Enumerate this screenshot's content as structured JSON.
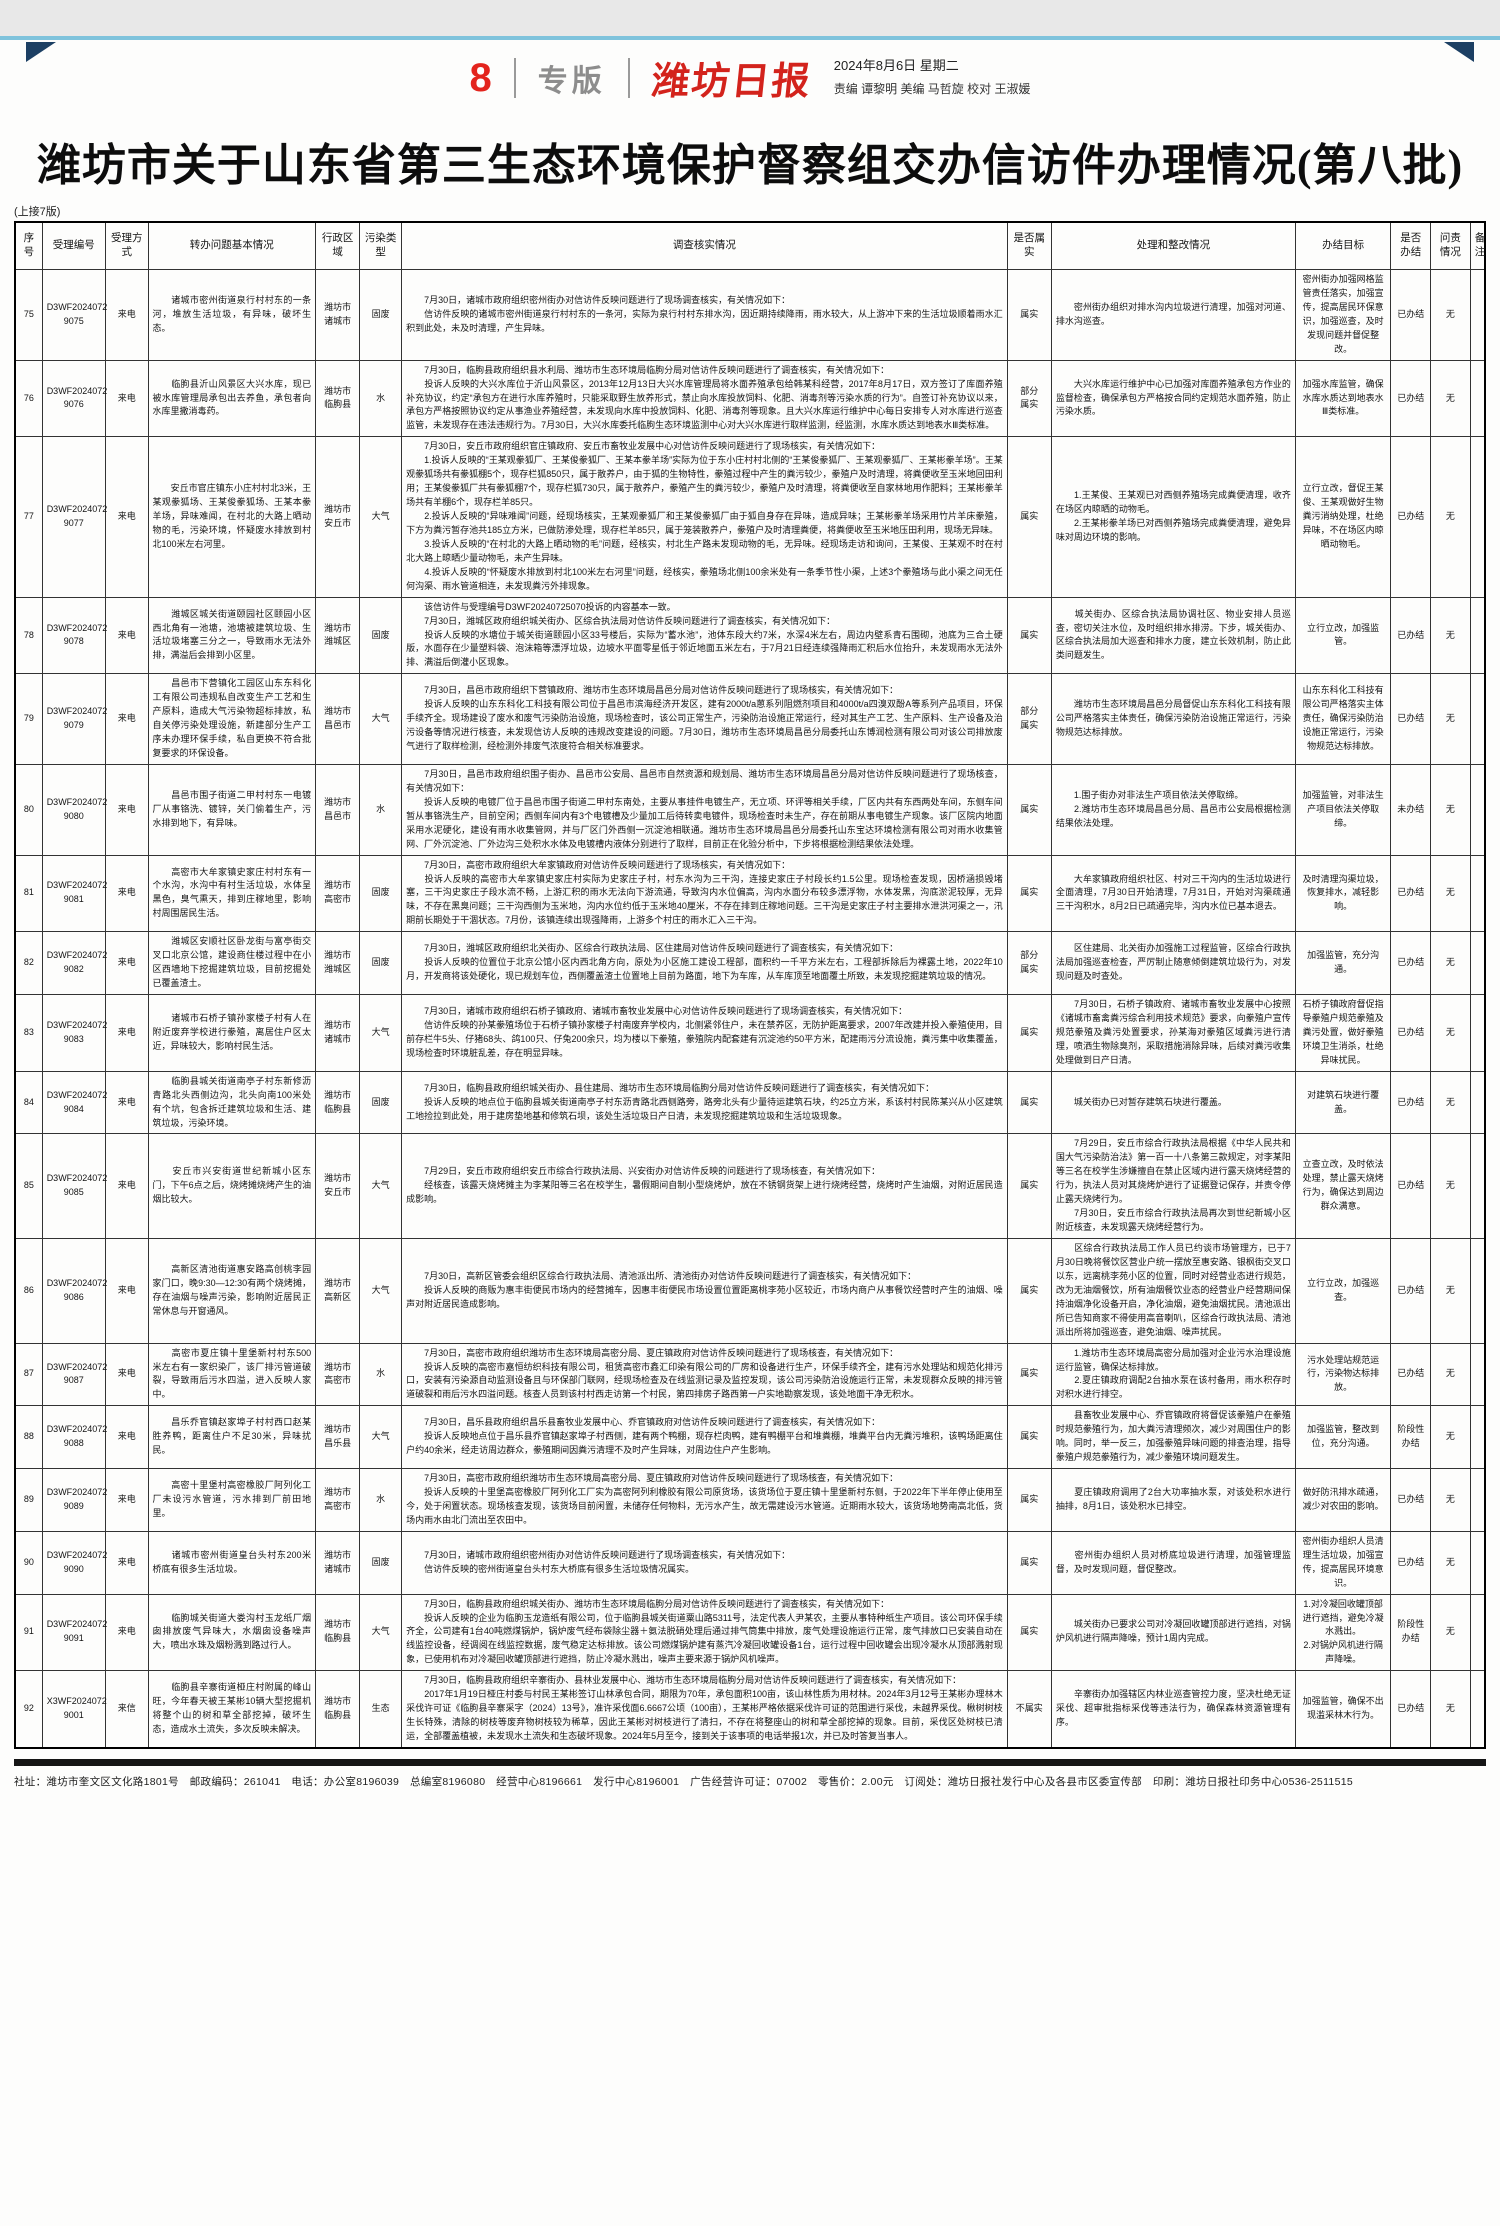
{
  "colors": {
    "brand_red": "#d3231c",
    "rule_blue": "#7fc3dc",
    "corner_navy": "#1c3f63"
  },
  "masthead": {
    "page_number": "8",
    "section": "专版",
    "paper_name": "潍坊日报",
    "date_line": "2024年8月6日        星期二",
    "credits": "责编 谭黎明 美编 马哲旋 校对 王淑媛"
  },
  "headline": "潍坊市关于山东省第三生态环境保护督察组交办信访件办理情况(第八批)",
  "continued_note": "(上接7版)",
  "table": {
    "headers": [
      "序号",
      "受理编号",
      "受理方式",
      "转办问题基本情况",
      "行政区域",
      "污染类型",
      "调查核实情况",
      "是否属实",
      "处理和整改情况",
      "办结目标",
      "是否办结",
      "问责情况",
      "备注"
    ],
    "rows": [
      {
        "no": "75",
        "id": "D3WF2024072\n9075",
        "method": "来电",
        "issue": "　　诸城市密州街道泉行村村东的一条河，堆放生活垃圾，有异味，破坏生态。",
        "region": "潍坊市\n诸城市",
        "type": "固废",
        "investigation": "　　7月30日，诸城市政府组织密州街办对信访件反映问题进行了现场调查核实，有关情况如下：\n　　信访件反映的诸城市密州街道泉行村村东的一条河，实际为泉行村村东排水沟，因近期持续降雨，雨水较大，从上游冲下来的生活垃圾顺着雨水汇积到此处，未及时清理，产生异味。",
        "verified": "属实",
        "handling": "　　密州街办组织对排水沟内垃圾进行清理，加强对河道、排水沟巡查。",
        "goal": "密州街办加强网格监管责任落实，加强宣传，提高居民环保意识，加强巡查，及时发现问题并督促整改。",
        "status": "已办结",
        "accountability": "无",
        "remark": ""
      },
      {
        "no": "76",
        "id": "D3WF2024072\n9076",
        "method": "来电",
        "issue": "　　临朐县沂山风景区大兴水库，现已被水库管理局承包出去养鱼，承包者向水库里撒消毒药。",
        "region": "潍坊市\n临朐县",
        "type": "水",
        "investigation": "　　7月30日，临朐县政府组织县水利局、潍坊市生态环境局临朐分局对信访件反映问题进行了调查核实，有关情况如下：\n　　投诉人反映的大兴水库位于沂山风景区，2013年12月13日大兴水库管理局将水面养殖承包给韩某科经营，2017年8月17日，双方签订了库面养殖补充协议，约定“承包方在进行水库养殖时，只能采取野生放养形式，禁止向水库投放饲料、化肥、消毒剂等污染水质的行为”。自签订补充协议以来，承包方严格按照协议约定从事渔业养殖经营，未发现向水库中投放饲料、化肥、消毒剂等现象。且大兴水库运行维护中心每日安排专人对水库进行巡查监管，未发现存在违法违规行为。7月30日，大兴水库委托临朐生态环境监测中心对大兴水库进行取样监测，经监测，水库水质达到地表水Ⅲ类标准。",
        "verified": "部分\n属实",
        "handling": "　　大兴水库运行维护中心已加强对库面养殖承包方作业的监督检查，确保承包方严格按合同约定规范水面养殖，防止污染水质。",
        "goal": "加强水库监管，确保水库水质达到地表水Ⅲ类标准。",
        "status": "已办结",
        "accountability": "无",
        "remark": ""
      },
      {
        "no": "77",
        "id": "D3WF2024072\n9077",
        "method": "来电",
        "issue": "　　安丘市官庄镇东小庄村村北3米，王某观豢狐场、王某俊豢狐场、王某本豢羊场，异味难闻，在村北的大路上晒动物的毛，污染环境，怀疑废水排放到村北100米左右河里。",
        "region": "潍坊市\n安丘市",
        "type": "大气",
        "investigation": "　　7月30日，安丘市政府组织官庄镇政府、安丘市畜牧业发展中心对信访件反映问题进行了现场核实，有关情况如下：\n　　1.投诉人反映的“王某观豢狐厂、王某俊豢狐厂、王某本豢羊场”实际为位于东小庄村村北侧的“王某俊豢狐厂、王某观豢狐厂、王某彬豢羊场”。王某观豢狐场共有豢狐棚5个，现存栏狐850只，属于散养户，由于狐的生物特性，豢殖过程中产生的粪污较少，豢殖户及时清理，将粪便收至玉米地回田利用；王某俊豢狐厂共有豢狐棚7个，现存栏狐730只，属于散养户，豢殖产生的粪污较少，豢殖户及时清理，将粪便收至自家林地用作肥料；王某彬豢羊场共有羊棚6个，现存栏羊85只。\n　　2.投诉人反映的“异味难闻”问题，经现场核实，王某观豢狐厂和王某俊豢狐厂由于狐自身存在异味，造成异味；王某彬豢羊场采用竹片羊床豢殖，下方为粪污暂存池共185立方米，已做防渗处理，现存栏羊85只，属于笼装散养户，豢殖户及时清理粪便，将粪便收至玉米地压田利用，现场无异味。\n　　3.投诉人反映的“在村北的大路上晒动物的毛”问题，经核实，村北生产路未发现动物的毛，无异味。经现场走访和询问，王某俊、王某观不时在村北大路上晾晒少量动物毛，未产生异味。\n　　4.投诉人反映的“怀疑废水排放到村北100米左右河里”问题，经核实，豢殖场北侧100余米处有一条季节性小渠，上述3个豢殖场与此小渠之间无任何沟渠、雨水管道相连，未发现粪污外排现象。",
        "verified": "属实",
        "handling": "　　1.王某俊、王某观已对西侧养殖场完成粪便清理，收齐在场区内晾晒的动物毛。\n　　2.王某彬豢羊场已对西侧养殖场完成粪便清理，避免异味对周边环境的影响。",
        "goal": "立行立改，督促王某俊、王某观做好生物粪污消纳处理，杜绝异味，不在场区内晾晒动物毛。",
        "status": "已办结",
        "accountability": "无",
        "remark": ""
      },
      {
        "no": "78",
        "id": "D3WF2024072\n9078",
        "method": "来电",
        "issue": "　　潍城区城关街道颐园社区颐园小区西北角有一池塘，池塘被建筑垃圾、生活垃圾堵塞三分之一，导致雨水无法外排，满溢后会排到小区里。",
        "region": "潍坊市\n潍城区",
        "type": "固废",
        "investigation": "　　该信访件与受理编号D3WF20240725070投诉的内容基本一致。\n　　7月30日，潍城区政府组织城关街办、区综合执法局对信访件反映问题进行了调查核实，有关情况如下：\n　　投诉人反映的水塘位于城关街道颐园小区33号楼后，实际为“蓄水池”，池体东段大约7米，水深4米左右，周边内壁系青石围砌，池底为三合土硬版，水面存在少量塑料袋、泡沫箱等漂浮垃圾，边坡水平面零星低于邻近地面五米左右，于7月21日经连续强降雨汇积后水位抬升，未发现雨水无法外排、满溢后倒灌小区现象。",
        "verified": "属实",
        "handling": "　　城关街办、区综合执法局协调社区、物业安排人员巡查，密切关注水位，及时组织排水排涝。下步，城关街办、区综合执法局加大巡查和排水力度，建立长效机制，防止此类问题发生。",
        "goal": "立行立改，加强监管。",
        "status": "已办结",
        "accountability": "无",
        "remark": ""
      },
      {
        "no": "79",
        "id": "D3WF2024072\n9079",
        "method": "来电",
        "issue": "　　昌邑市下营镇化工园区山东东科化工有限公司违规私自改变生产工艺和生产原料，造成大气污染物超标排放，私自关停污染处理设施，新建部分生产工序未办理环保手续，私自更换不符合批复要求的环保设备。",
        "region": "潍坊市\n昌邑市",
        "type": "大气",
        "investigation": "　　7月30日，昌邑市政府组织下营镇政府、潍坊市生态环境局昌邑分局对信访件反映问题进行了现场核实，有关情况如下：\n　　投诉人反映的山东东科化工科技有限公司位于昌邑市滨海经济开发区，建有2000t/a蒽系列阻燃剂项目和4000t/a四溴双酚A等系列产品项目，环保手续齐全。现场建设了废水和废气污染防治设施，现场检查时，该公司正常生产，污染防治设施正常运行，经对其生产工艺、生产原料、生产设备及治污设备等情况进行核查，未发现信访人反映的违规改变建设的问题。7月30日，潍坊市生态环境局昌邑分局委托山东博润检测有限公司对该公司排放废气进行了取样检测，经检测外排废气浓度符合相关标准要求。",
        "verified": "部分\n属实",
        "handling": "　　潍坊市生态环境局昌邑分局督促山东东科化工科技有限公司严格落实主体责任，确保污染防治设施正常运行，污染物规范达标排放。",
        "goal": "山东东科化工科技有限公司严格落实主体责任，确保污染防治设施正常运行，污染物规范达标排放。",
        "status": "已办结",
        "accountability": "无",
        "remark": ""
      },
      {
        "no": "80",
        "id": "D3WF2024072\n9080",
        "method": "来电",
        "issue": "　　昌邑市围子街道二甲村村东一电镀厂从事铬洗、镀锌，关门偷着生产，污水排到地下，有异味。",
        "region": "潍坊市\n昌邑市",
        "type": "水",
        "investigation": "　　7月30日，昌邑市政府组织围子街办、昌邑市公安局、昌邑市自然资源和规划局、潍坊市生态环境局昌邑分局对信访件反映问题进行了现场核查，有关情况如下：\n　　投诉人反映的电镀厂位于昌邑市围子街道二甲村东南处，主要从事挂件电镀生产，无立项、环评等相关手续，厂区内共有东西两处车间，东侧车间暂从事铬洗生产，目前空闲；西侧车间内有3个电镀槽及少量加工后待转卖电镀件，现场检查时未生产，存在前期从事电镀生产现象。该厂区院内地面采用水泥硬化，建设有雨水收集管网，并与厂区门外西侧一沉淀池相联通。潍坊市生态环境局昌邑分局委托山东宝达环境检测有限公司对雨水收集管网、厂外沉淀池、厂外边沟三处积水水体及电镀槽内液体分别进行了取样，目前正在化验分析中，下步将根据检测结果依法处理。",
        "verified": "属实",
        "handling": "　　1.围子街办对非法生产项目依法关停取缔。\n　　2.潍坊市生态环境局昌邑分局、昌邑市公安局根据检测结果依法处理。",
        "goal": "加强监管，对非法生产项目依法关停取缔。",
        "status": "未办结",
        "accountability": "无",
        "remark": ""
      },
      {
        "no": "81",
        "id": "D3WF2024072\n9081",
        "method": "来电",
        "issue": "　　高密市大牟家镇史家庄村村东有一个水沟，水沟中有村生活垃圾，水体呈黑色，臭气熏天，排到庄稼地里，影响村周围居民生活。",
        "region": "潍坊市\n高密市",
        "type": "固废",
        "investigation": "　　7月30日，高密市政府组织大牟家镇政府对信访件反映问题进行了现场核实，有关情况如下：\n　　投诉人反映的高密市大牟家镇史家庄村实际为史家庄子村，村东水沟为三干沟，连接史家庄子村段长约1.5公里。现场检查发现，因桥涵损毁堵塞，三干沟史家庄子段水流不畅，上游汇积的雨水无法向下游流通，导致沟内水位偏高，沟内水面分布较多漂浮物，水体发黑，沟底淤泥较厚，无异味，不存在黑臭问题；三干沟西侧为玉米地，沟内水位约低于玉米地40厘米，不存在排到庄稼地问题。三干沟是史家庄子村主要排水泄洪河渠之一，汛期前长期处于干涸状态。7月份，该镇连续出现强降雨，上游多个村庄的雨水汇入三干沟。",
        "verified": "属实",
        "handling": "　　大牟家镇政府组织社区、村对三干沟内的生活垃圾进行全面清理，7月30日开始清理，7月31日，开始对沟渠疏通三干沟积水，8月2日已疏通完毕，沟内水位已基本退去。",
        "goal": "及时清理沟渠垃圾，恢复排水，减轻影响。",
        "status": "已办结",
        "accountability": "无",
        "remark": ""
      },
      {
        "no": "82",
        "id": "D3WF2024072\n9082",
        "method": "来电",
        "issue": "　　潍城区安顺社区卧龙街与富亭街交叉口北京公馆，建设商住楼过程中在小区西墙地下挖掘建筑垃圾，目前挖掘处已覆盖渣土。",
        "region": "潍坊市\n潍城区",
        "type": "固废",
        "investigation": "　　7月30日，潍城区政府组织北关街办、区综合行政执法局、区住建局对信访件反映问题进行了调查核实，有关情况如下：\n　　投诉人反映的位置位于北京公馆小区内西北角方向，原处为小区施工建设工程部，面积约一千平方米左右，工程部拆除后为裸露土地，2022年10月，开发商将该处硬化，现已规划车位，西侧覆盖渣土位置地上目前为路面，地下为车库，从车库顶至地面覆土所致，未发现挖掘建筑垃圾的情况。",
        "verified": "部分\n属实",
        "handling": "　　区住建局、北关街办加强施工过程监管，区综合行政执法局加强巡查检查，严厉制止随意倾倒建筑垃圾行为，对发现问题及时查处。",
        "goal": "加强监管，充分沟通。",
        "status": "已办结",
        "accountability": "无",
        "remark": ""
      },
      {
        "no": "83",
        "id": "D3WF2024072\n9083",
        "method": "来电",
        "issue": "　　诸城市石桥子镇孙家楼子村有人在附近废弃学校进行豢殖，离居住户区太近，异味较大，影响村民生活。",
        "region": "潍坊市\n诸城市",
        "type": "大气",
        "investigation": "　　7月30日，诸城市政府组织石桥子镇政府、诸城市畜牧业发展中心对信访件反映问题进行了现场调查核实，有关情况如下：\n　　信访件反映的孙某豢殖场位于石桥子镇孙家楼子村南废弃学校内，北侧紧邻住户，未在禁养区，无防护距离要求，2007年改建并投入豢殖使用，目前存栏牛5头、仔猪68头、鸽100只、仔兔200余只，均为楼以下豢殖，豢殖院内配套建有沉淀池约50平方米，配建雨污分流设施，粪污集中收集覆盖，现场检查时环境脏乱差，存在明显异味。",
        "verified": "属实",
        "handling": "　　7月30日，石桥子镇政府、诸城市畜牧业发展中心按照《诸城市畜禽粪污综合利用技术规范》要求，向豢殖户宣传规范豢殖及粪污处置要求，孙某海对豢殖区域粪污进行清理，喷洒生物除臭剂，采取措施消除异味，后续对粪污收集处理做到日产日清。",
        "goal": "石桥子镇政府督促指导豢殖户规范豢殖及粪污处置，做好豢殖环境卫生消杀，杜绝异味扰民。",
        "status": "已办结",
        "accountability": "无",
        "remark": ""
      },
      {
        "no": "84",
        "id": "D3WF2024072\n9084",
        "method": "来电",
        "issue": "　　临朐县城关街道南亭子村东新修沥青路北头西侧边沟，北头向南100米处有个坑，包含拆迁建筑垃圾和生活、建筑垃圾，污染环境。",
        "region": "潍坊市\n临朐县",
        "type": "固废",
        "investigation": "　　7月30日，临朐县政府组织城关街办、县住建局、潍坊市生态环境局临朐分局对信访件反映问题进行了调查核实，有关情况如下：\n　　投诉人反映的地点位于临朐县城关街道南亭子村东沥青路北西侧路旁，路旁北头有少量待运建筑石块，约25立方米，系该村村民陈某兴从小区建筑工地捡拉到此处，用于建房垫地基和修筑石坝，该处生活垃圾日产日清，未发现挖掘建筑垃圾和生活垃圾现象。",
        "verified": "属实",
        "handling": "　　城关街办已对暂存建筑石块进行覆盖。",
        "goal": "对建筑石块进行覆盖。",
        "status": "已办结",
        "accountability": "无",
        "remark": ""
      },
      {
        "no": "85",
        "id": "D3WF2024072\n9085",
        "method": "来电",
        "issue": "　　安丘市兴安街道世纪新城小区东门，下午6点之后，烧烤摊烧烤产生的油烟比较大。",
        "region": "潍坊市\n安丘市",
        "type": "大气",
        "investigation": "　　7月29日，安丘市政府组织安丘市综合行政执法局、兴安街办对信访件反映的问题进行了现场核查，有关情况如下：\n　　经核查，该露天烧烤摊主为李某阳等三名在校学生，暑假期间自制小型烧烤炉，放在不锈钢货架上进行烧烤经营，烧烤时产生油烟，对附近居民造成影响。",
        "verified": "属实",
        "handling": "　　7月29日，安丘市综合行政执法局根据《中华人民共和国大气污染防治法》第一百一十八条第三款规定，对李某阳等三名在校学生涉嫌擅自在禁止区域内进行露天烧烤经营的行为，执法人员对其烧烤炉进行了证据登记保存，并责令停止露天烧烤行为。\n　　7月30日，安丘市综合行政执法局再次到世纪新城小区附近核查，未发现露天烧烤经营行为。",
        "goal": "立查立改，及时依法处理，禁止露天烧烤行为，确保达到周边群众满意。",
        "status": "已办结",
        "accountability": "无",
        "remark": ""
      },
      {
        "no": "86",
        "id": "D3WF2024072\n9086",
        "method": "来电",
        "issue": "　　高新区清池街道惠安路高创桃李园家门口，晚9:30—12:30有两个烧烤摊，存在油烟与噪声污染，影响附近居民正常休息与开窗通风。",
        "region": "潍坊市\n高新区",
        "type": "大气",
        "investigation": "　　7月30日，高新区管委会组织区综合行政执法局、清池派出所、清池街办对信访件反映问题进行了调查核实，有关情况如下：\n　　投诉人反映的商贩为惠丰街便民市场内的经营摊车，因惠丰街便民市场设置位置距离桃李苑小区较近，市场内商户从事餐饮经营时产生的油烟、噪声对附近居民造成影响。",
        "verified": "属实",
        "handling": "　　区综合行政执法局工作人员已约谈市场管理方，已于7月30日晚将餐饮区营业户统一摆放至惠安路、银枫街交叉口以东，远离桃李苑小区的位置，同时对经营业态进行规范，改为无油烟餐饮，所有油烟餐饮业态的经营业户经营期间保持油烟净化设备开启，净化油烟，避免油烟扰民。清池派出所已告知商家不得使用高音喇叭，区综合行政执法局、清池派出所将加强巡查，避免油烟、噪声扰民。",
        "goal": "立行立改，加强巡查。",
        "status": "已办结",
        "accountability": "无",
        "remark": ""
      },
      {
        "no": "87",
        "id": "D3WF2024072\n9087",
        "method": "来电",
        "issue": "　　高密市夏庄镇十里堡新村村东500米左右有一家织染厂，该厂排污管道破裂，导致雨后污水四溢，进入反映人家中。",
        "region": "潍坊市\n高密市",
        "type": "水",
        "investigation": "　　7月30日，高密市政府组织潍坊市生态环境局高密分局、夏庄镇政府对信访件反映问题进行了现场核查，有关情况如下：\n　　投诉人反映的高密市嘉恒纺织科技有限公司，租赁高密市鑫汇印染有限公司的厂房和设备进行生产，环保手续齐全，建有污水处理站和规范化排污口，安装有污染源自动监测设备且与环保部门联网，经现场检查及在线监测记录及监控发现，该公司污染防治设施运行正常，未发现群众反映的排污管道破裂和雨后污水四溢问题。核查人员到该村村西走访第一个村民，第四排房子路西第一户实地勘察发现，该处地面干净无积水。",
        "verified": "属实",
        "handling": "　　1.潍坊市生态环境局高密分局加强对企业污水治理设施运行监管，确保达标排放。\n　　2.夏庄镇政府调配2台抽水泵在该村备用，雨水积存时对积水进行排空。",
        "goal": "污水处理站规范运行，污染物达标排放。",
        "status": "已办结",
        "accountability": "无",
        "remark": ""
      },
      {
        "no": "88",
        "id": "D3WF2024072\n9088",
        "method": "来电",
        "issue": "　　昌乐乔官镇赵家埠子村村西口赵某胜养鸭，距离住户不足30米，异味扰民。",
        "region": "潍坊市\n昌乐县",
        "type": "大气",
        "investigation": "　　7月30日，昌乐县政府组织昌乐县畜牧业发展中心、乔官镇政府对信访件反映问题进行了调查核实，有关情况如下：\n　　投诉人反映地点位于昌乐县乔官镇赵家埠子村西侧，建有两个鸭棚，现存栏肉鸭，建有鸭棚平台和堆粪棚，堆粪平台内无粪污堆积，该鸭场距离住户约40余米，经走访周边群众，豢殖期间因粪污清理不及时产生异味，对周边住户产生影响。",
        "verified": "属实",
        "handling": "　　县畜牧业发展中心、乔官镇政府将督促该豢殖户在豢殖时规范豢殖行为，加大粪污清理频次，减少对周围住户的影响。同时，举一反三，加强豢殖异味问题的排查治理，指导豢殖户规范豢殖行为，减少豢殖环境问题发生。",
        "goal": "加强监管，整改到位，充分沟通。",
        "status": "阶段性\n办结",
        "accountability": "无",
        "remark": ""
      },
      {
        "no": "89",
        "id": "D3WF2024072\n9089",
        "method": "来电",
        "issue": "　　高密十里堡村高密橡胶厂阿列化工厂未设污水管道，污水排到厂前田地里。",
        "region": "潍坊市\n高密市",
        "type": "水",
        "investigation": "　　7月30日，高密市政府组织潍坊市生态环境局高密分局、夏庄镇政府对信访件反映问题进行了现场核查，有关情况如下：\n　　投诉人反映的十里堡高密橡胶厂阿列化工厂实为高密阿列利橡胶有限公司原货场，该货场位于夏庄镇十里堡新村东侧，于2022年下半年停止使用至今，处于闲置状态。现场核查发现，该货场目前闲置，未储存任何物料，无污水产生，故无需建设污水管道。近期雨水较大，该货场地势南高北低，货场内雨水由北门流出至农田中。",
        "verified": "属实",
        "handling": "　　夏庄镇政府调用了2台大功率抽水泵，对该处积水进行抽排，8月1日，该处积水已排空。",
        "goal": "做好防汛排水疏通，减少对农田的影响。",
        "status": "已办结",
        "accountability": "无",
        "remark": ""
      },
      {
        "no": "90",
        "id": "D3WF2024072\n9090",
        "method": "来电",
        "issue": "　　诸城市密州街道皇台头村东200米桥底有很多生活垃圾。",
        "region": "潍坊市\n诸城市",
        "type": "固废",
        "investigation": "　　7月30日，诸城市政府组织密州街办对信访件反映问题进行了现场调查核实，有关情况如下：\n　　信访件反映的密州街道皇台头村东大桥底有很多生活垃圾情况属实。",
        "verified": "属实",
        "handling": "　　密州街办组织人员对桥底垃圾进行清理，加强管理监督，及时发现问题，督促整改。",
        "goal": "密州街办组织人员清理生活垃圾，加强宣传，提高居民环境意识。",
        "status": "已办结",
        "accountability": "无",
        "remark": ""
      },
      {
        "no": "91",
        "id": "D3WF2024072\n9091",
        "method": "来电",
        "issue": "　　临朐城关街道大娄沟村玉龙纸厂烟囱排放废气异味大，水烟囱设备噪声大，喷出水珠及烟粉溅到路过行人。",
        "region": "潍坊市\n临朐县",
        "type": "大气",
        "investigation": "　　7月30日，临朐县政府组织城关街办、潍坊市生态环境局临朐分局对信访件反映问题进行了调查核实，有关情况如下：\n　　投诉人反映的企业为临朐玉龙造纸有限公司，位于临朐县城关街道粟山路5311号，法定代表人尹某农，主要从事特种纸生产项目。该公司环保手续齐全，公司建有1台40吨燃煤锅炉，锅炉废气经布袋除尘器＋氨法脱硝处理后通过排气筒集中排放，废气处理设施运行正常，废气排放口已安装自动在线监控设备，经调阅在线监控数据，废气稳定达标排放。该公司燃煤锅炉建有蒸汽冷凝回收罐设备1台，运行过程中回收罐会出现冷凝水从顶部溅射现象，已使用机布对冷凝回收罐顶部进行遮挡，防止冷凝水溅出，噪声主要来源于锅炉风机噪声。",
        "verified": "属实",
        "handling": "　　城关街办已要求公司对冷凝回收罐顶部进行遮挡，对锅炉风机进行隔声降噪，预计1周内完成。",
        "goal": "1.对冷凝回收罐顶部进行遮挡，避免冷凝水溅出。\n2.对锅炉风机进行隔声降噪。",
        "status": "阶段性\n办结",
        "accountability": "无",
        "remark": ""
      },
      {
        "no": "92",
        "id": "X3WF2024072\n9001",
        "method": "来信",
        "issue": "　　临朐县辛寨街道桠庄村附属的峰山旺，今年春天被王某彬10辆大型挖掘机将整个山的树和草全部挖掉，破坏生态，造成水土流失，多次反映未解决。",
        "region": "潍坊市\n临朐县",
        "type": "生态",
        "investigation": "　　7月30日，临朐县政府组织辛寨街办、县林业发展中心、潍坊市生态环境局临朐分局对信访件反映问题进行了调查核实，有关情况如下：\n　　2017年1月19日桠庄村委与村民王某彬签订山林承包合同，期限为70年，承包面积100亩，该山林性质为用材林。2024年3月12号王某彬办理林木采伐许可证《临朐县辛寨采字（2024）13号》，准许采伐面6.6667公顷（100亩），王某彬严格依据采伐许可证的范围进行采伐，未越界采伐。楸树树枝生长特殊，清除的树枝等废弃物树枝较为稀草，因此王某彬对树枝进行了清扫，不存在将整座山的树和草全部挖掉的现象。目前，采伐区处树枝已清运，全部覆盖植被，未发现水土流失和生态破坏现象。2024年5月至今，接到关于该事项的电话举报1次，并已及时答复当事人。",
        "verified": "不属实",
        "handling": "　　辛寨街办加强辖区内林业巡查管控力度，坚决杜绝无证采伐、超审批指标采伐等违法行为，确保森林资源管理有序。",
        "goal": "加强监管，确保不出现滥采林木行为。",
        "status": "已办结",
        "accountability": "无",
        "remark": ""
      }
    ]
  },
  "footer": "社址：潍坊市奎文区文化路1801号　邮政编码：261041　电话：办公室8196039　总编室8196080　经营中心8196661　发行中心8196001　广告经营许可证：07002　零售价：2.00元　订阅处：潍坊日报社发行中心及各县市区委宣传部　印刷：潍坊日报社印务中心0536-2511515"
}
